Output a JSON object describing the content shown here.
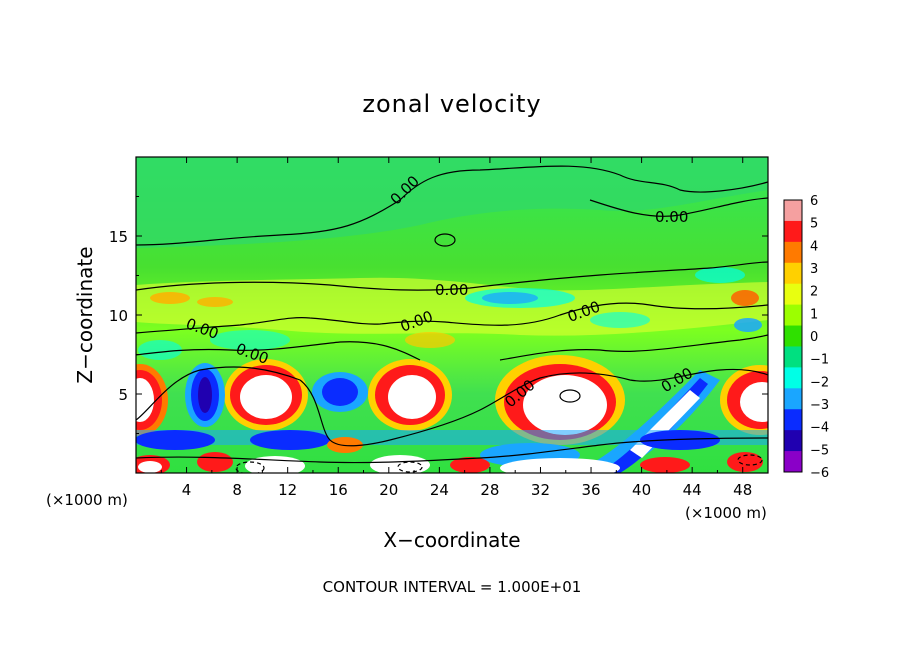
{
  "chart_data": {
    "type": "heatmap",
    "title": "zonal velocity",
    "xlabel": "X−coordinate",
    "ylabel": "Z−coordinate",
    "x_unit_left": "(×1000 m)",
    "x_unit_right": "(×1000 m)",
    "xlim": [
      0,
      50
    ],
    "ylim": [
      0,
      20
    ],
    "x_ticks": [
      4,
      8,
      12,
      16,
      20,
      24,
      28,
      32,
      36,
      40,
      44,
      48
    ],
    "y_ticks": [
      5,
      10,
      15
    ],
    "colorbar": {
      "ticks": [
        "6",
        "5",
        "4",
        "3",
        "2",
        "1",
        "0",
        "−1",
        "−2",
        "−3",
        "−4",
        "−5",
        "−6"
      ],
      "colors": [
        "#f5a0a0",
        "#ff1a1a",
        "#ff7a00",
        "#ffd000",
        "#e8ff10",
        "#9cff00",
        "#2fe000",
        "#00e080",
        "#00ffe6",
        "#1aa6ff",
        "#0a2cff",
        "#2000b0",
        "#8a00c8"
      ]
    },
    "contour_labels": [
      "0.00",
      "0.00",
      "0.00",
      "0.00",
      "0.00",
      "0.00",
      "0.00",
      "0.00",
      "0.00",
      "0.00"
    ],
    "footer": "CONTOUR INTERVAL = 1.000E+01"
  }
}
